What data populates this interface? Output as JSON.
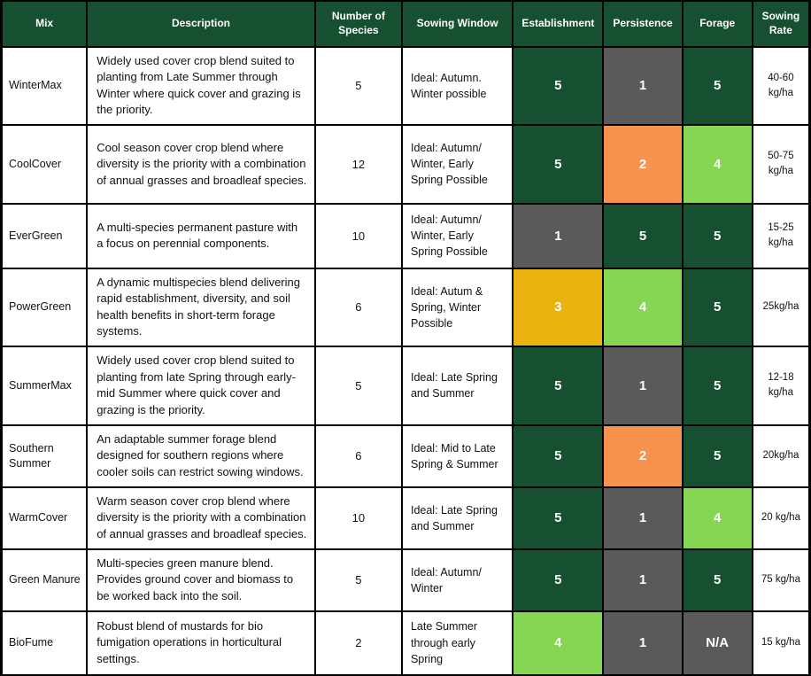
{
  "table": {
    "header_bg": "#175030",
    "header_text_color": "#ffffff",
    "rating_colors": {
      "5": "#175030",
      "4": "#85d652",
      "3": "#eab20e",
      "2": "#f7934e",
      "1": "#5a5a5a",
      "N/A": "#5a5a5a"
    },
    "columns": [
      {
        "label": "Mix"
      },
      {
        "label": "Description"
      },
      {
        "label": "Number of Species"
      },
      {
        "label": "Sowing Window"
      },
      {
        "label": "Establishment"
      },
      {
        "label": "Persistence"
      },
      {
        "label": "Forage"
      },
      {
        "label": "Sowing Rate"
      }
    ],
    "rows": [
      {
        "mix": "WinterMax",
        "description": "Widely used cover crop blend suited to planting from Late Summer through Winter where quick cover and grazing is the priority.",
        "num_species": "5",
        "sowing_window": "Ideal: Autumn. Winter possible",
        "establishment": "5",
        "persistence": "1",
        "forage": "5",
        "sowing_rate": "40-60 kg/ha"
      },
      {
        "mix": "CoolCover",
        "description": "Cool season cover crop blend where diversity is the priority with a combination of annual grasses and broadleaf species.",
        "num_species": "12",
        "sowing_window": "Ideal: Autumn/ Winter, Early Spring Possible",
        "establishment": "5",
        "persistence": "2",
        "forage": "4",
        "sowing_rate": "50-75 kg/ha"
      },
      {
        "mix": "EverGreen",
        "description": "A multi-species permanent pasture with a focus on perennial components.",
        "num_species": "10",
        "sowing_window": "Ideal: Autumn/ Winter, Early Spring Possible",
        "establishment": "1",
        "persistence": "5",
        "forage": "5",
        "sowing_rate": "15-25 kg/ha"
      },
      {
        "mix": "PowerGreen",
        "description": "A dynamic multispecies blend delivering rapid establishment, diversity, and soil health benefits in short-term forage systems.",
        "num_species": "6",
        "sowing_window": "Ideal: Autum & Spring, Winter Possible",
        "establishment": "3",
        "persistence": "4",
        "forage": "5",
        "sowing_rate": "25kg/ha"
      },
      {
        "mix": "SummerMax",
        "description": "Widely used cover crop blend suited to planting from late Spring through early-mid Summer where quick cover and grazing is the priority.",
        "num_species": "5",
        "sowing_window": "Ideal: Late Spring and Summer",
        "establishment": "5",
        "persistence": "1",
        "forage": "5",
        "sowing_rate": "12-18 kg/ha"
      },
      {
        "mix": "Southern Summer",
        "description": "An adaptable summer forage blend designed for southern regions where cooler soils can restrict sowing windows.",
        "num_species": "6",
        "sowing_window": "Ideal: Mid to Late Spring & Summer",
        "establishment": "5",
        "persistence": "2",
        "forage": "5",
        "sowing_rate": "20kg/ha"
      },
      {
        "mix": "WarmCover",
        "description": "Warm season cover crop blend where diversity is the priority with a combination of annual grasses and broadleaf species.",
        "num_species": "10",
        "sowing_window": "Ideal: Late Spring and Summer",
        "establishment": "5",
        "persistence": "1",
        "forage": "4",
        "sowing_rate": "20 kg/ha"
      },
      {
        "mix": "Green Manure",
        "description": "Multi-species green manure blend. Provides ground cover and biomass to be worked back into the soil.",
        "num_species": "5",
        "sowing_window": "Ideal: Autumn/ Winter",
        "establishment": "5",
        "persistence": "1",
        "forage": "5",
        "sowing_rate": "75 kg/ha"
      },
      {
        "mix": "BioFume",
        "description": "Robust blend of mustards for bio fumigation operations in horticultural settings.",
        "num_species": "2",
        "sowing_window": "Late Summer through early Spring",
        "establishment": "4",
        "persistence": "1",
        "forage": "N/A",
        "sowing_rate": "15 kg/ha"
      }
    ]
  }
}
